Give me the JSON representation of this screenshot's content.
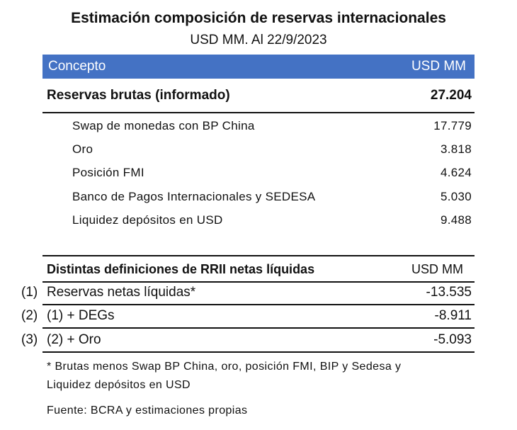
{
  "header": {
    "title": "Estimación composición de reservas internacionales",
    "subtitle": "USD MM. Al 22/9/2023"
  },
  "table": {
    "col_concept": "Concepto",
    "col_unit": "USD MM",
    "total": {
      "label": "Reservas brutas (informado)",
      "value": "27.204"
    },
    "items": [
      {
        "label": "Swap de monedas con BP China",
        "value": "17.779"
      },
      {
        "label": "Oro",
        "value": "3.818"
      },
      {
        "label": "Posición FMI",
        "value": "4.624"
      },
      {
        "label": "Banco de Pagos Internacionales y SEDESA",
        "value": "5.030"
      },
      {
        "label": "Liquidez depósitos en USD",
        "value": "9.488"
      }
    ]
  },
  "definitions": {
    "title": "Distintas definiciones de RRII netas líquidas",
    "unit": "USD MM",
    "rows": [
      {
        "num": "(1)",
        "label": "Reservas netas líquidas*",
        "value": "-13.535"
      },
      {
        "num": "(2)",
        "label": "(1) + DEGs",
        "value": "-8.911"
      },
      {
        "num": "(3)",
        "label": "(2) + Oro",
        "value": "-5.093"
      }
    ]
  },
  "notes": {
    "footnote_line1": "* Brutas menos Swap BP China, oro, posición FMI, BIP y Sedesa y",
    "footnote_line2": "Liquidez depósitos en USD",
    "source": "Fuente: BCRA y estimaciones propias"
  }
}
